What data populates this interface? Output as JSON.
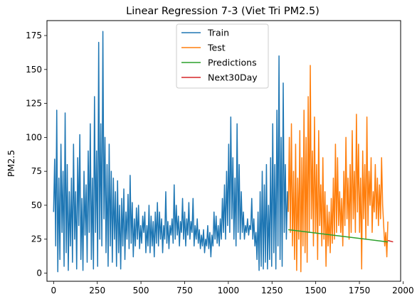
{
  "chart_data": {
    "type": "line",
    "title": "Linear Regression 7-3 (Viet Tri PM2.5)",
    "xlabel": "",
    "ylabel": "PM2.5",
    "xlim": [
      -38,
      1986
    ],
    "ylim": [
      -6,
      186
    ],
    "xticks": [
      0,
      250,
      500,
      750,
      1000,
      1250,
      1500,
      1750,
      2000
    ],
    "yticks": [
      0,
      25,
      50,
      75,
      100,
      125,
      150,
      175
    ],
    "grid": false,
    "legend": {
      "placement": "top-center"
    },
    "series": [
      {
        "name": "Train",
        "color": "#1f77b4",
        "points": [
          [
            0,
            45
          ],
          [
            6,
            84
          ],
          [
            12,
            20
          ],
          [
            18,
            120
          ],
          [
            24,
            1
          ],
          [
            30,
            70
          ],
          [
            36,
            10
          ],
          [
            42,
            95
          ],
          [
            48,
            30
          ],
          [
            54,
            75
          ],
          [
            60,
            5
          ],
          [
            66,
            118
          ],
          [
            72,
            15
          ],
          [
            78,
            80
          ],
          [
            84,
            2
          ],
          [
            90,
            60
          ],
          [
            96,
            20
          ],
          [
            102,
            70
          ],
          [
            108,
            8
          ],
          [
            114,
            95
          ],
          [
            120,
            25
          ],
          [
            126,
            60
          ],
          [
            132,
            3
          ],
          [
            138,
            85
          ],
          [
            144,
            35
          ],
          [
            150,
            102
          ],
          [
            156,
            10
          ],
          [
            162,
            55
          ],
          [
            168,
            2
          ],
          [
            174,
            75
          ],
          [
            180,
            28
          ],
          [
            186,
            65
          ],
          [
            192,
            8
          ],
          [
            198,
            90
          ],
          [
            204,
            30
          ],
          [
            210,
            110
          ],
          [
            216,
            10
          ],
          [
            222,
            70
          ],
          [
            228,
            3
          ],
          [
            234,
            130
          ],
          [
            240,
            30
          ],
          [
            246,
            90
          ],
          [
            252,
            5
          ],
          [
            258,
            170
          ],
          [
            264,
            25
          ],
          [
            270,
            110
          ],
          [
            276,
            20
          ],
          [
            282,
            178
          ],
          [
            288,
            40
          ],
          [
            294,
            100
          ],
          [
            300,
            15
          ],
          [
            306,
            80
          ],
          [
            312,
            5
          ],
          [
            318,
            95
          ],
          [
            324,
            20
          ],
          [
            330,
            75
          ],
          [
            336,
            8
          ],
          [
            342,
            70
          ],
          [
            348,
            25
          ],
          [
            354,
            60
          ],
          [
            360,
            5
          ],
          [
            366,
            68
          ],
          [
            372,
            15
          ],
          [
            378,
            50
          ],
          [
            384,
            3
          ],
          [
            390,
            55
          ],
          [
            396,
            20
          ],
          [
            402,
            62
          ],
          [
            408,
            10
          ],
          [
            414,
            45
          ],
          [
            420,
            25
          ],
          [
            426,
            58
          ],
          [
            432,
            18
          ],
          [
            438,
            72
          ],
          [
            444,
            22
          ],
          [
            450,
            52
          ],
          [
            456,
            12
          ],
          [
            462,
            40
          ],
          [
            468,
            20
          ],
          [
            474,
            48
          ],
          [
            480,
            25
          ],
          [
            486,
            50
          ],
          [
            492,
            18
          ],
          [
            498,
            35
          ],
          [
            504,
            22
          ],
          [
            510,
            42
          ],
          [
            516,
            30
          ],
          [
            522,
            45
          ],
          [
            528,
            15
          ],
          [
            534,
            35
          ],
          [
            540,
            20
          ],
          [
            546,
            50
          ],
          [
            552,
            15
          ],
          [
            558,
            42
          ],
          [
            564,
            20
          ],
          [
            570,
            38
          ],
          [
            576,
            12
          ],
          [
            582,
            45
          ],
          [
            588,
            22
          ],
          [
            594,
            52
          ],
          [
            600,
            20
          ],
          [
            606,
            45
          ],
          [
            612,
            25
          ],
          [
            618,
            40
          ],
          [
            624,
            15
          ],
          [
            630,
            35
          ],
          [
            636,
            25
          ],
          [
            642,
            60
          ],
          [
            648,
            22
          ],
          [
            654,
            38
          ],
          [
            660,
            18
          ],
          [
            666,
            35
          ],
          [
            672,
            28
          ],
          [
            678,
            40
          ],
          [
            684,
            22
          ],
          [
            690,
            65
          ],
          [
            696,
            25
          ],
          [
            702,
            50
          ],
          [
            708,
            28
          ],
          [
            714,
            42
          ],
          [
            720,
            20
          ],
          [
            726,
            38
          ],
          [
            732,
            30
          ],
          [
            738,
            55
          ],
          [
            744,
            25
          ],
          [
            750,
            45
          ],
          [
            756,
            20
          ],
          [
            762,
            40
          ],
          [
            768,
            28
          ],
          [
            774,
            52
          ],
          [
            780,
            25
          ],
          [
            786,
            38
          ],
          [
            792,
            30
          ],
          [
            798,
            55
          ],
          [
            804,
            20
          ],
          [
            810,
            35
          ],
          [
            816,
            25
          ],
          [
            822,
            40
          ],
          [
            828,
            22
          ],
          [
            834,
            32
          ],
          [
            840,
            18
          ],
          [
            846,
            28
          ],
          [
            852,
            20
          ],
          [
            858,
            32
          ],
          [
            864,
            15
          ],
          [
            870,
            25
          ],
          [
            876,
            20
          ],
          [
            882,
            35
          ],
          [
            888,
            18
          ],
          [
            894,
            30
          ],
          [
            900,
            12
          ],
          [
            906,
            28
          ],
          [
            912,
            20
          ],
          [
            918,
            45
          ],
          [
            924,
            25
          ],
          [
            930,
            42
          ],
          [
            936,
            22
          ],
          [
            942,
            35
          ],
          [
            948,
            20
          ],
          [
            954,
            40
          ],
          [
            960,
            25
          ],
          [
            966,
            55
          ],
          [
            972,
            30
          ],
          [
            978,
            65
          ],
          [
            984,
            25
          ],
          [
            990,
            75
          ],
          [
            996,
            35
          ],
          [
            1002,
            95
          ],
          [
            1008,
            30
          ],
          [
            1014,
            115
          ],
          [
            1020,
            40
          ],
          [
            1026,
            85
          ],
          [
            1032,
            25
          ],
          [
            1038,
            70
          ],
          [
            1044,
            20
          ],
          [
            1050,
            110
          ],
          [
            1056,
            30
          ],
          [
            1062,
            80
          ],
          [
            1068,
            25
          ],
          [
            1074,
            60
          ],
          [
            1080,
            30
          ],
          [
            1086,
            45
          ],
          [
            1092,
            25
          ],
          [
            1098,
            35
          ],
          [
            1104,
            30
          ],
          [
            1110,
            40
          ],
          [
            1116,
            28
          ],
          [
            1122,
            35
          ],
          [
            1128,
            32
          ],
          [
            1134,
            55
          ],
          [
            1140,
            25
          ],
          [
            1146,
            40
          ],
          [
            1152,
            20
          ],
          [
            1158,
            30
          ],
          [
            1164,
            10
          ],
          [
            1170,
            45
          ],
          [
            1176,
            2
          ],
          [
            1182,
            60
          ],
          [
            1188,
            5
          ],
          [
            1194,
            75
          ],
          [
            1200,
            3
          ],
          [
            1206,
            65
          ],
          [
            1212,
            8
          ],
          [
            1218,
            80
          ],
          [
            1224,
            3
          ],
          [
            1230,
            50
          ],
          [
            1236,
            10
          ],
          [
            1242,
            85
          ],
          [
            1248,
            5
          ],
          [
            1254,
            110
          ],
          [
            1260,
            15
          ],
          [
            1266,
            80
          ],
          [
            1272,
            3
          ],
          [
            1278,
            120
          ],
          [
            1284,
            20
          ],
          [
            1290,
            160
          ],
          [
            1296,
            10
          ],
          [
            1302,
            100
          ],
          [
            1308,
            5
          ],
          [
            1314,
            140
          ],
          [
            1320,
            30
          ],
          [
            1326,
            80
          ],
          [
            1332,
            25
          ],
          [
            1338,
            60
          ],
          [
            1343,
            45
          ]
        ]
      },
      {
        "name": "Test",
        "color": "#ff7f0e",
        "points": [
          [
            1343,
            45
          ],
          [
            1349,
            100
          ],
          [
            1355,
            30
          ],
          [
            1361,
            110
          ],
          [
            1367,
            20
          ],
          [
            1373,
            75
          ],
          [
            1379,
            10
          ],
          [
            1385,
            95
          ],
          [
            1391,
            2
          ],
          [
            1397,
            70
          ],
          [
            1403,
            25
          ],
          [
            1409,
            105
          ],
          [
            1415,
            1
          ],
          [
            1421,
            85
          ],
          [
            1427,
            20
          ],
          [
            1433,
            120
          ],
          [
            1439,
            15
          ],
          [
            1445,
            100
          ],
          [
            1451,
            8
          ],
          [
            1457,
            130
          ],
          [
            1463,
            30
          ],
          [
            1469,
            153
          ],
          [
            1475,
            40
          ],
          [
            1481,
            90
          ],
          [
            1487,
            20
          ],
          [
            1493,
            115
          ],
          [
            1499,
            30
          ],
          [
            1505,
            80
          ],
          [
            1511,
            10
          ],
          [
            1517,
            105
          ],
          [
            1523,
            35
          ],
          [
            1529,
            65
          ],
          [
            1535,
            20
          ],
          [
            1541,
            85
          ],
          [
            1547,
            25
          ],
          [
            1553,
            60
          ],
          [
            1559,
            5
          ],
          [
            1565,
            50
          ],
          [
            1571,
            20
          ],
          [
            1577,
            45
          ],
          [
            1583,
            15
          ],
          [
            1589,
            55
          ],
          [
            1595,
            22
          ],
          [
            1601,
            70
          ],
          [
            1607,
            25
          ],
          [
            1613,
            95
          ],
          [
            1619,
            30
          ],
          [
            1625,
            85
          ],
          [
            1631,
            35
          ],
          [
            1637,
            60
          ],
          [
            1643,
            30
          ],
          [
            1649,
            55
          ],
          [
            1655,
            20
          ],
          [
            1661,
            75
          ],
          [
            1667,
            35
          ],
          [
            1673,
            100
          ],
          [
            1679,
            40
          ],
          [
            1685,
            70
          ],
          [
            1691,
            25
          ],
          [
            1697,
            80
          ],
          [
            1703,
            30
          ],
          [
            1709,
            105
          ],
          [
            1715,
            40
          ],
          [
            1721,
            75
          ],
          [
            1727,
            30
          ],
          [
            1733,
            117
          ],
          [
            1739,
            45
          ],
          [
            1745,
            95
          ],
          [
            1751,
            30
          ],
          [
            1757,
            70
          ],
          [
            1763,
            3
          ],
          [
            1769,
            90
          ],
          [
            1775,
            40
          ],
          [
            1781,
            80
          ],
          [
            1787,
            25
          ],
          [
            1793,
            115
          ],
          [
            1799,
            35
          ],
          [
            1805,
            75
          ],
          [
            1811,
            50
          ],
          [
            1817,
            85
          ],
          [
            1823,
            30
          ],
          [
            1829,
            60
          ],
          [
            1835,
            45
          ],
          [
            1841,
            80
          ],
          [
            1847,
            40
          ],
          [
            1853,
            70
          ],
          [
            1859,
            35
          ],
          [
            1865,
            65
          ],
          [
            1871,
            40
          ],
          [
            1877,
            85
          ],
          [
            1883,
            50
          ],
          [
            1889,
            35
          ],
          [
            1895,
            20
          ],
          [
            1901,
            30
          ],
          [
            1907,
            12
          ],
          [
            1913,
            38
          ]
        ]
      },
      {
        "name": "Predictions",
        "color": "#2ca02c",
        "points": [
          [
            1343,
            32
          ],
          [
            1913,
            23
          ]
        ]
      },
      {
        "name": "Next30Day",
        "color": "#d62728",
        "points": [
          [
            1913,
            24
          ],
          [
            1943,
            23
          ]
        ]
      }
    ]
  }
}
